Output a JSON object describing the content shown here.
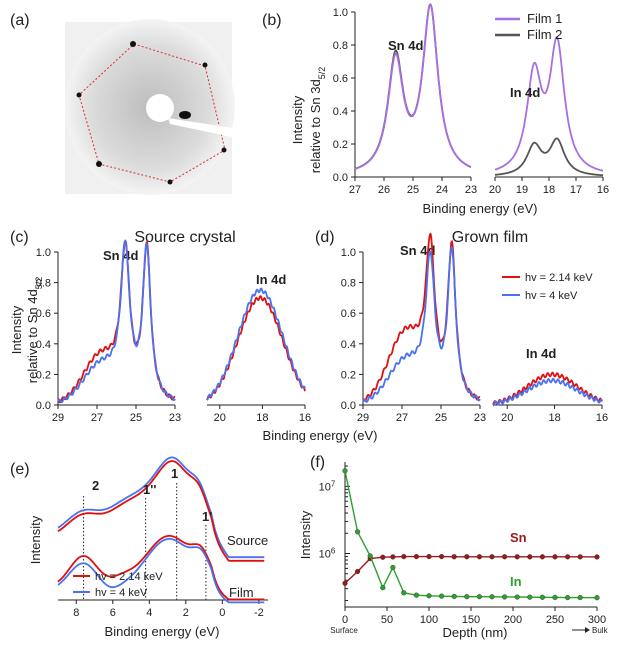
{
  "colors": {
    "film1": "#a86fe0",
    "film2": "#555555",
    "red": "#e01010",
    "blue": "#4a72f0",
    "dark_red": "#9a1a1a",
    "green": "#2ea02e"
  },
  "panels": {
    "a": {
      "label": "(a)"
    },
    "b": {
      "label": "(b)",
      "ylabel1": "Intensity",
      "ylabel2": "relative to Sn 3d",
      "ylabel2_sub": "5/2",
      "xlabel": "Binding energy (eV)",
      "peak_label_sn": "Sn 4d",
      "peak_label_in": "In 4d"
    },
    "c": {
      "label": "(c)",
      "title": "Source crystal",
      "ylabel1": "Intensity",
      "ylabel2": "relative to Sn 4d",
      "ylabel2_sub": "5/2",
      "peak_label_sn": "Sn 4d",
      "peak_label_in": "In 4d"
    },
    "d": {
      "label": "(d)",
      "title": "Grown film",
      "peak_label_sn": "Sn 4d",
      "peak_label_in": "In 4d"
    },
    "cd": {
      "xlabel": "Binding energy (eV)"
    },
    "e": {
      "label": "(e)",
      "ylabel": "Intensity",
      "xlabel": "Binding energy (eV)",
      "feature_labels": [
        "2",
        "1''",
        "1",
        "1'"
      ],
      "curve_labels": [
        "Source",
        "Film"
      ]
    },
    "f": {
      "label": "(f)",
      "ylabel": "Intensity",
      "xlabel": "Depth (nm)",
      "surface_label": "Surface",
      "bulk_label": "Bulk"
    }
  },
  "chart_data": [
    {
      "panel": "b",
      "type": "line",
      "xlabel": "Binding energy (eV)",
      "ylabel": "Intensity relative to Sn 3d5/2",
      "xticks_left": [
        27,
        26,
        25,
        24,
        23
      ],
      "xticks_right": [
        20,
        19,
        18,
        17,
        16
      ],
      "ylim": [
        0,
        1.0
      ],
      "yticks": [
        0,
        0.2,
        0.4,
        0.6,
        0.8,
        1.0
      ],
      "series": [
        {
          "name": "Film 1",
          "peaks": {
            "sn_4d": [
              0.68,
              1.0
            ],
            "in_4d": [
              0.59,
              0.77
            ]
          }
        },
        {
          "name": "Film 2",
          "peaks": {
            "sn_4d": [
              0.7,
              1.0
            ],
            "in_4d": [
              0.18,
              0.21
            ]
          }
        }
      ]
    },
    {
      "panel": "c",
      "type": "line",
      "xlabel": "Binding energy (eV)",
      "xticks_left": [
        29,
        27,
        25,
        23
      ],
      "xticks_right": [
        20,
        18,
        16
      ],
      "ylim": [
        0,
        1.0
      ],
      "yticks": [
        0,
        0.2,
        0.4,
        0.6,
        0.8,
        1.0
      ],
      "series": [
        {
          "name": "hv = 2.14 keV",
          "peaks": {
            "sn_4d": [
              0.91,
              1.0
            ],
            "in_4d": 0.7
          }
        },
        {
          "name": "hv = 4 keV",
          "peaks": {
            "sn_4d": [
              0.94,
              1.0
            ],
            "in_4d": 0.75
          }
        }
      ]
    },
    {
      "panel": "d",
      "type": "line",
      "xlabel": "Binding energy (eV)",
      "xticks_left": [
        29,
        27,
        25,
        23
      ],
      "xticks_right": [
        20,
        18,
        16
      ],
      "ylim": [
        0,
        1.0
      ],
      "yticks": [
        0,
        0.2,
        0.4,
        0.6,
        0.8,
        1.0
      ],
      "legend": [
        "hv = 2.14 keV",
        "hv = 4 keV"
      ],
      "series": [
        {
          "name": "hv = 2.14 keV",
          "peaks": {
            "sn_4d": [
              0.9,
              1.0
            ],
            "in_4d": 0.2
          }
        },
        {
          "name": "hv = 4 keV",
          "peaks": {
            "sn_4d": [
              0.86,
              0.98
            ],
            "in_4d": 0.16
          }
        }
      ]
    },
    {
      "panel": "e",
      "type": "line",
      "xlabel": "Binding energy (eV)",
      "xticks": [
        8,
        6,
        4,
        2,
        0,
        -2
      ],
      "feature_positions_eV": {
        "2": 7.6,
        "1''": 4.2,
        "1": 2.5,
        "1'": 0.9
      },
      "legend": [
        "hv = 2.14 keV",
        "hv = 4 keV"
      ]
    },
    {
      "panel": "f",
      "type": "line",
      "xlabel": "Depth (nm)",
      "ylabel": "Intensity",
      "yscale": "log",
      "xlim": [
        0,
        300
      ],
      "xticks": [
        0,
        50,
        100,
        150,
        200,
        250,
        300
      ],
      "ytick_labels": [
        "10^6",
        "10^7"
      ],
      "x": [
        0,
        15,
        30,
        45,
        57,
        70,
        85,
        100,
        115,
        130,
        145,
        160,
        175,
        190,
        205,
        220,
        235,
        250,
        265,
        280,
        300
      ],
      "series": [
        {
          "name": "Sn",
          "values": [
            360000,
            540000,
            840000,
            880000,
            890000,
            900000,
            900000,
            900000,
            900000,
            895000,
            895000,
            895000,
            895000,
            895000,
            893000,
            893000,
            893000,
            893000,
            892000,
            892000,
            890000
          ]
        },
        {
          "name": "In",
          "values": [
            17000000,
            2100000,
            920000,
            310000,
            620000,
            260000,
            240000,
            235000,
            232000,
            230000,
            228000,
            228000,
            227000,
            226000,
            225000,
            224000,
            223000,
            222000,
            221000,
            221000,
            220000
          ]
        }
      ]
    }
  ]
}
